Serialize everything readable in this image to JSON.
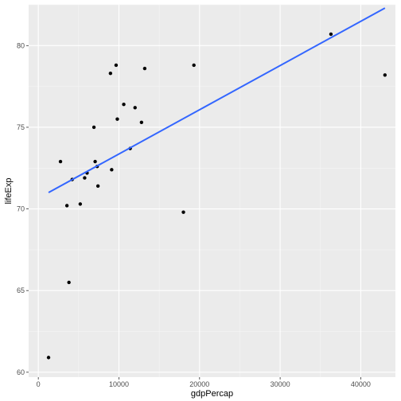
{
  "chart_data": {
    "type": "scatter",
    "title": "",
    "xlabel": "gdpPercap",
    "ylabel": "lifeExp",
    "xlim": [
      -1200,
      44300
    ],
    "ylim": [
      59.7,
      82.5
    ],
    "x_ticks": [
      0,
      10000,
      20000,
      30000,
      40000
    ],
    "x_tick_labels": [
      "0",
      "10000",
      "20000",
      "30000",
      "40000"
    ],
    "y_ticks": [
      60,
      65,
      70,
      75,
      80
    ],
    "y_tick_labels": [
      "60",
      "65",
      "70",
      "75",
      "80"
    ],
    "grid": true,
    "legend": "none",
    "points": [
      {
        "x": 1270,
        "y": 60.9
      },
      {
        "x": 2750,
        "y": 72.9
      },
      {
        "x": 3550,
        "y": 70.2
      },
      {
        "x": 3800,
        "y": 65.5
      },
      {
        "x": 4200,
        "y": 71.8
      },
      {
        "x": 5200,
        "y": 70.3
      },
      {
        "x": 5750,
        "y": 71.9
      },
      {
        "x": 6050,
        "y": 72.2
      },
      {
        "x": 6900,
        "y": 75.0
      },
      {
        "x": 7050,
        "y": 72.9
      },
      {
        "x": 7300,
        "y": 72.6
      },
      {
        "x": 7400,
        "y": 71.4
      },
      {
        "x": 8950,
        "y": 78.3
      },
      {
        "x": 9100,
        "y": 72.4
      },
      {
        "x": 9650,
        "y": 78.8
      },
      {
        "x": 9800,
        "y": 75.5
      },
      {
        "x": 10600,
        "y": 76.4
      },
      {
        "x": 11400,
        "y": 73.7
      },
      {
        "x": 12000,
        "y": 76.2
      },
      {
        "x": 12800,
        "y": 75.3
      },
      {
        "x": 13200,
        "y": 78.6
      },
      {
        "x": 18000,
        "y": 69.8
      },
      {
        "x": 19300,
        "y": 78.8
      },
      {
        "x": 36300,
        "y": 80.7
      },
      {
        "x": 43000,
        "y": 78.2
      }
    ],
    "trend_line": {
      "x": [
        1270,
        43000
      ],
      "y": [
        71.0,
        82.3
      ]
    },
    "colors": {
      "panel": "#ebebeb",
      "grid_major": "#ffffff",
      "grid_minor": "#f5f5f5",
      "points": "#000000",
      "trend": "#3366ff",
      "tick": "#333333"
    }
  }
}
